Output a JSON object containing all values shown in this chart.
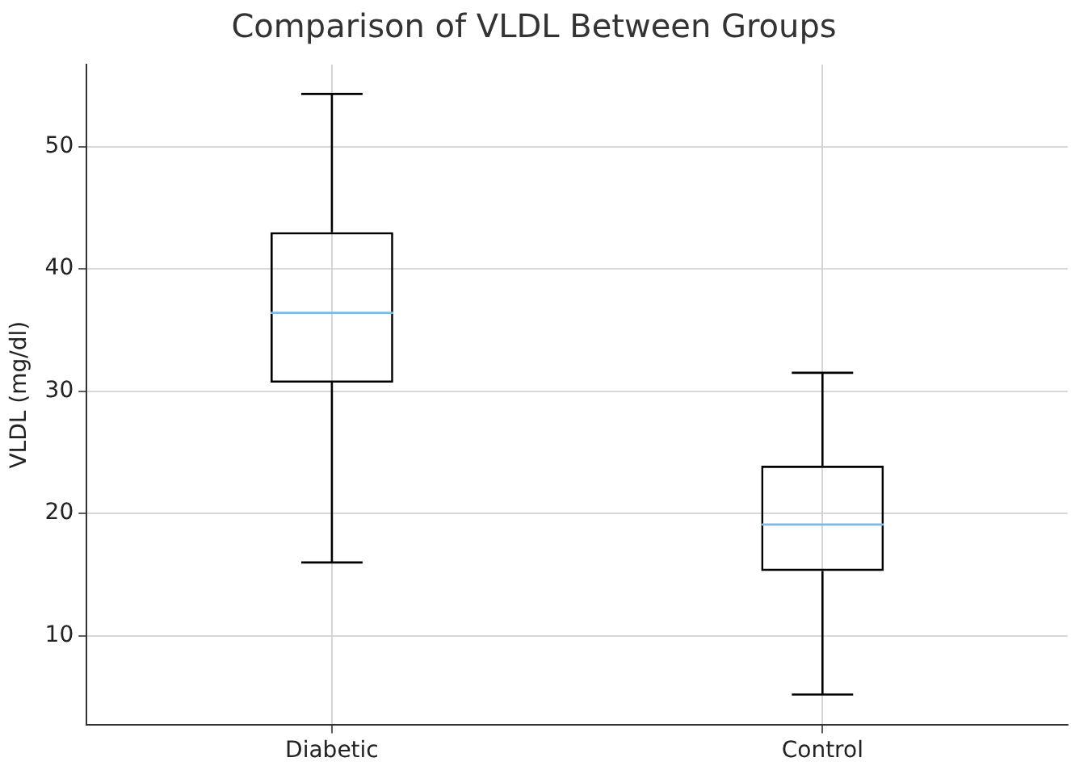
{
  "chart_data": {
    "type": "box",
    "title": "Comparison of VLDL Between Groups",
    "ylabel": "VLDL (mg/dl)",
    "categories": [
      "Diabetic",
      "Control"
    ],
    "color": "#000000",
    "boxes": [
      {
        "low": 16.0,
        "q1": 30.7,
        "median": 36.4,
        "q3": 43.0,
        "high": 54.3
      },
      {
        "low": 5.2,
        "q1": 15.3,
        "median": 19.1,
        "q3": 23.9,
        "high": 31.5
      }
    ],
    "ylim": [
      2.7,
      56.7
    ],
    "yticks": [
      10,
      20,
      30,
      40,
      50
    ],
    "grid": true
  }
}
